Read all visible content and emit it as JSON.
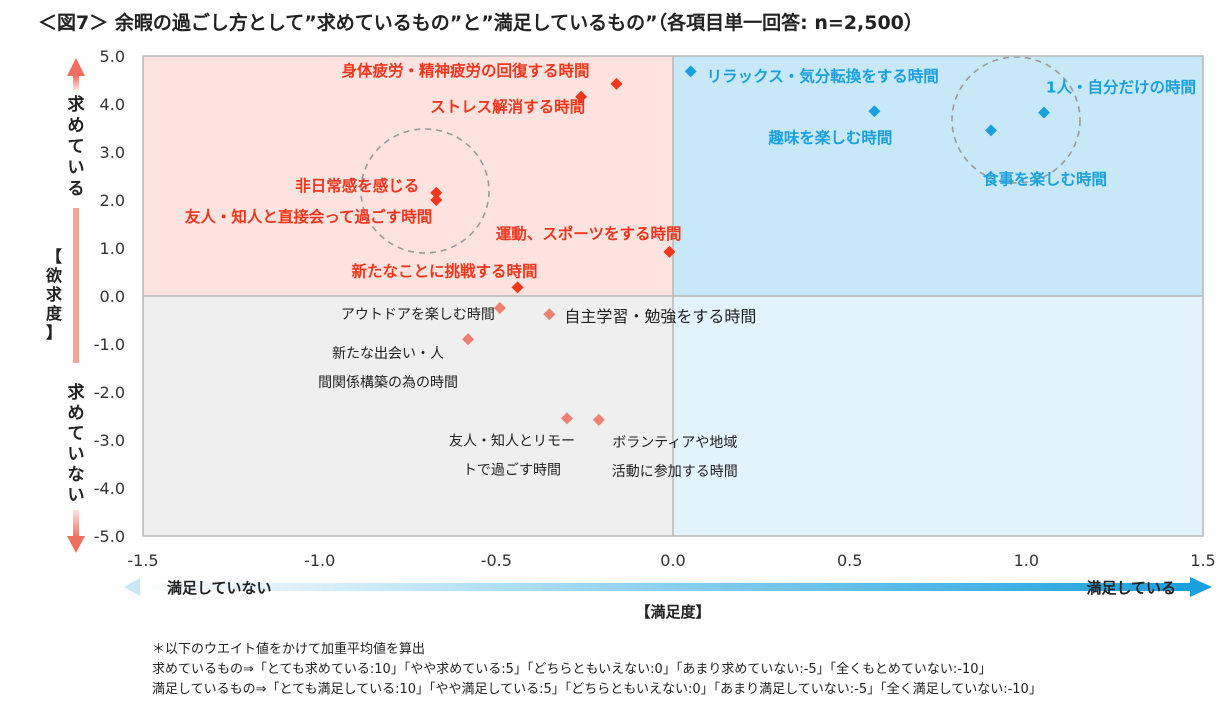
{
  "title": "＜図7＞ 余暇の過ごし方として”求めているもの”と”満足しているもの”（各項目単一回答: n=2,500）",
  "chart_data": {
    "type": "scatter",
    "xlim": [
      -1.5,
      1.5
    ],
    "ylim": [
      -5.0,
      5.0
    ],
    "x_ticks": [
      "-1.5",
      "-1.0",
      "-0.5",
      "0.0",
      "0.5",
      "1.0",
      "1.5"
    ],
    "y_ticks": [
      "5.0",
      "4.0",
      "3.0",
      "2.0",
      "1.0",
      "0.0",
      "-1.0",
      "-2.0",
      "-3.0",
      "-4.0",
      "-5.0"
    ],
    "xlabel": "【満足度】",
    "ylabel": "【欲求度】",
    "x_low_label": "満足していない",
    "x_high_label": "満足している",
    "y_high_label": "求めている",
    "y_low_label": "求めていない",
    "colors": {
      "wanted_unsatisfied": "#f0371e",
      "wanted_satisfied": "#1aa0de",
      "not_wanted": "#f08070",
      "quad_top_left": "#fde3df",
      "quad_top_right": "#c8e8f8",
      "quad_bottom_left": "#efefef",
      "quad_bottom_right": "#e2f3fb"
    },
    "points": [
      {
        "label": "身体疲労・精神疲労の回復する時間",
        "x": -0.16,
        "y": 4.42,
        "group": "wanted_unsatisfied"
      },
      {
        "label": "ストレス解消する時間",
        "x": -0.26,
        "y": 4.15,
        "group": "wanted_unsatisfied"
      },
      {
        "label": "非日常感を感じる",
        "x": -0.67,
        "y": 2.15,
        "group": "wanted_unsatisfied"
      },
      {
        "label": "友人・知人と直接会って過ごす時間",
        "x": -0.67,
        "y": 2.0,
        "group": "wanted_unsatisfied"
      },
      {
        "label": "運動、スポーツをする時間",
        "x": -0.01,
        "y": 0.92,
        "group": "wanted_unsatisfied"
      },
      {
        "label": "新たなことに挑戦する時間",
        "x": -0.44,
        "y": 0.18,
        "group": "wanted_unsatisfied"
      },
      {
        "label": "リラックス・気分転換をする時間",
        "x": 0.05,
        "y": 4.68,
        "group": "wanted_satisfied"
      },
      {
        "label": "趣味を楽しむ時間",
        "x": 0.57,
        "y": 3.85,
        "group": "wanted_satisfied"
      },
      {
        "label": "1人・自分だけの時間",
        "x": 1.05,
        "y": 3.82,
        "group": "wanted_satisfied"
      },
      {
        "label": "食事を楽しむ時間",
        "x": 0.9,
        "y": 3.45,
        "group": "wanted_satisfied"
      },
      {
        "label": "アウトドアを楽しむ時間",
        "x": -0.49,
        "y": -0.25,
        "group": "not_wanted"
      },
      {
        "label": "自主学習・勉強をする時間",
        "x": -0.35,
        "y": -0.38,
        "group": "not_wanted"
      },
      {
        "label": "新たな出会い・人間関係構築の為の時間",
        "x": -0.58,
        "y": -0.9,
        "group": "not_wanted"
      },
      {
        "label": "友人・知人とリモートで過ごす時間",
        "x": -0.3,
        "y": -2.55,
        "group": "not_wanted"
      },
      {
        "label": "ボランティアや地域活動に参加する時間",
        "x": -0.21,
        "y": -2.58,
        "group": "not_wanted"
      }
    ]
  },
  "notes": [
    "＊以下のウエイト値をかけて加重平均値を算出",
    "求めているもの⇒「とても求めている:10」「やや求めている:5」「どちらともいえない:0」「あまり求めていない:-5」「全くもとめていない:-10」",
    "満足しているもの⇒「とても満足している:10」「やや満足している:5」「どちらともいえない:0」「あまり満足していない:-5」「全く満足していない:-10」"
  ]
}
